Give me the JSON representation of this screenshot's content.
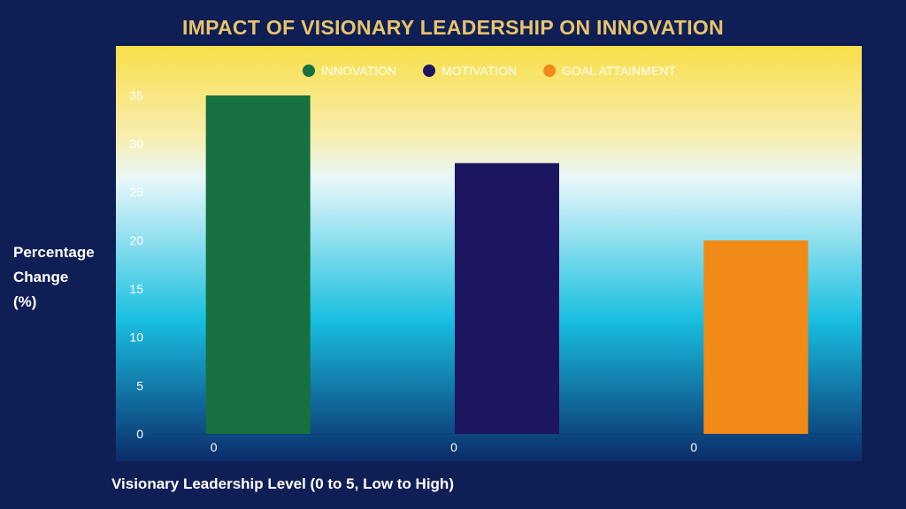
{
  "chart_data": {
    "type": "bar",
    "title": "IMPACT OF VISIONARY LEADERSHIP ON INNOVATION",
    "ylabel": "Percentage Change (%)",
    "xlabel": "Visionary Leadership Level (0 to 5, Low to High)",
    "categories": [
      "0",
      "0",
      "0"
    ],
    "series": [
      {
        "name": "INNOVATION",
        "color": "#177040",
        "values": [
          35,
          null,
          null
        ]
      },
      {
        "name": "MOTIVATION",
        "color": "#1c1660",
        "values": [
          null,
          28,
          null
        ]
      },
      {
        "name": "GOAL ATTAINMENT",
        "color": "#f28a18",
        "values": [
          null,
          null,
          20
        ]
      }
    ],
    "ylim": [
      0,
      35
    ],
    "yticks": [
      0,
      5,
      10,
      15,
      20,
      25,
      30,
      35
    ],
    "grid": false,
    "legend_position": "top-center"
  },
  "colors": {
    "background": "#0f1f55",
    "title": "#e8c46a",
    "plot_gradient_top": "#f9df4a",
    "plot_gradient_light": "#e8f7fa",
    "plot_gradient_cyan": "#19bfe0",
    "plot_gradient_bottom": "#0a2c6a"
  }
}
